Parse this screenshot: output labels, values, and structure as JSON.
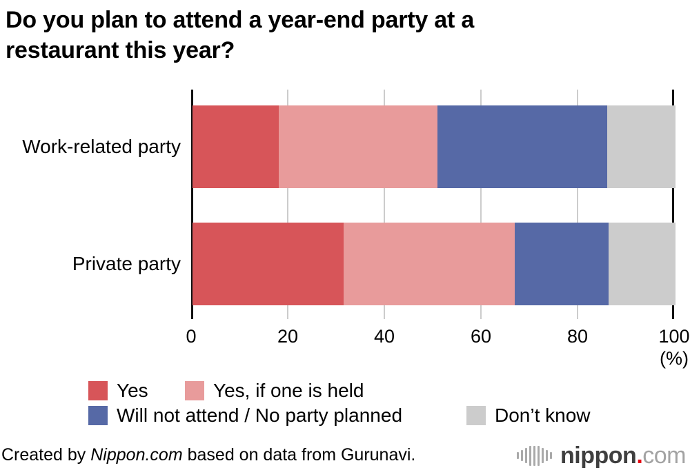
{
  "title": "Do you plan to attend a year-end party at a\nrestaurant this year?",
  "chart_data": {
    "type": "bar",
    "orientation": "horizontal",
    "stacked": true,
    "title": "Do you plan to attend a year-end party at a restaurant this year?",
    "categories": [
      "Work-related party",
      "Private party"
    ],
    "series": [
      {
        "name": "Yes",
        "color": "#d75559",
        "values": [
          17.8,
          31.3
        ]
      },
      {
        "name": "Yes, if one is held",
        "color": "#e89b9b",
        "values": [
          32.9,
          35.4
        ]
      },
      {
        "name": "Will not attend / No party planned",
        "color": "#5669a6",
        "values": [
          35.2,
          19.4
        ]
      },
      {
        "name": "Don’t know",
        "color": "#cccccc",
        "values": [
          14.1,
          13.9
        ]
      }
    ],
    "xlim": [
      0,
      100
    ],
    "x_ticks": [
      0,
      20,
      40,
      60,
      80,
      100
    ],
    "x_tick_labels": [
      "0",
      "20",
      "40",
      "60",
      "80",
      "100"
    ],
    "x_unit_label": "(%)",
    "grid": true,
    "gridline_color": "#cccccc",
    "legend_position": "bottom"
  },
  "footer": {
    "prefix": "Created by ",
    "brand": "Nippon.com",
    "suffix": " based on data from Gurunavi."
  },
  "logo": {
    "name": "nippon",
    "dot": ".",
    "tld": "com",
    "accent_color": "#e60012"
  }
}
